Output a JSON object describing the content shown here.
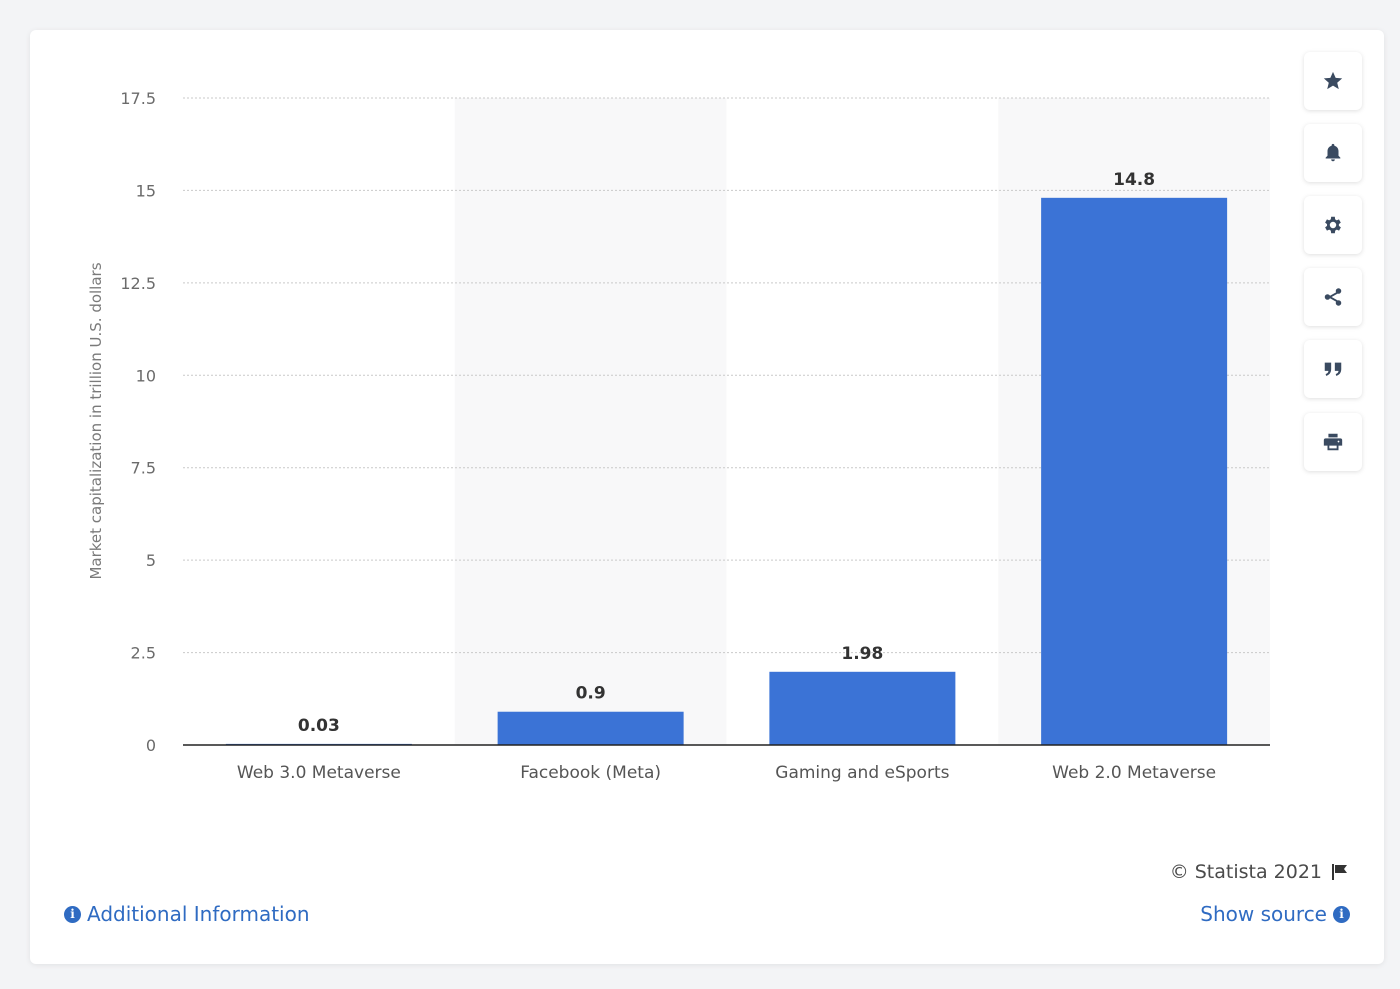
{
  "chart_data": {
    "type": "bar",
    "categories": [
      "Web 3.0 Metaverse",
      "Facebook (Meta)",
      "Gaming and eSports",
      "Web 2.0 Metaverse"
    ],
    "values": [
      0.03,
      0.9,
      1.98,
      14.8
    ],
    "value_labels": [
      "0.03",
      "0.9",
      "1.98",
      "14.8"
    ],
    "ylabel": "Market capitalization in trillion U.S. dollars",
    "ylim": [
      0,
      17.5
    ],
    "yticks": [
      0,
      2.5,
      5,
      7.5,
      10,
      12.5,
      15,
      17.5
    ],
    "ytick_labels": [
      "0",
      "2.5",
      "5",
      "7.5",
      "10",
      "12.5",
      "15",
      "17.5"
    ],
    "grid": true,
    "bar_color": "#3b73d6",
    "alt_band_color": "#f8f8f9"
  },
  "toolbar": {
    "buttons": [
      {
        "name": "favorite-button",
        "icon": "star-icon"
      },
      {
        "name": "notification-button",
        "icon": "bell-icon"
      },
      {
        "name": "settings-button",
        "icon": "gear-icon"
      },
      {
        "name": "share-button",
        "icon": "share-icon"
      },
      {
        "name": "cite-button",
        "icon": "quote-icon"
      },
      {
        "name": "print-button",
        "icon": "print-icon"
      }
    ]
  },
  "footer": {
    "copyright": "© Statista 2021",
    "additional_info": "Additional Information",
    "show_source": "Show source",
    "info_glyph": "i"
  }
}
